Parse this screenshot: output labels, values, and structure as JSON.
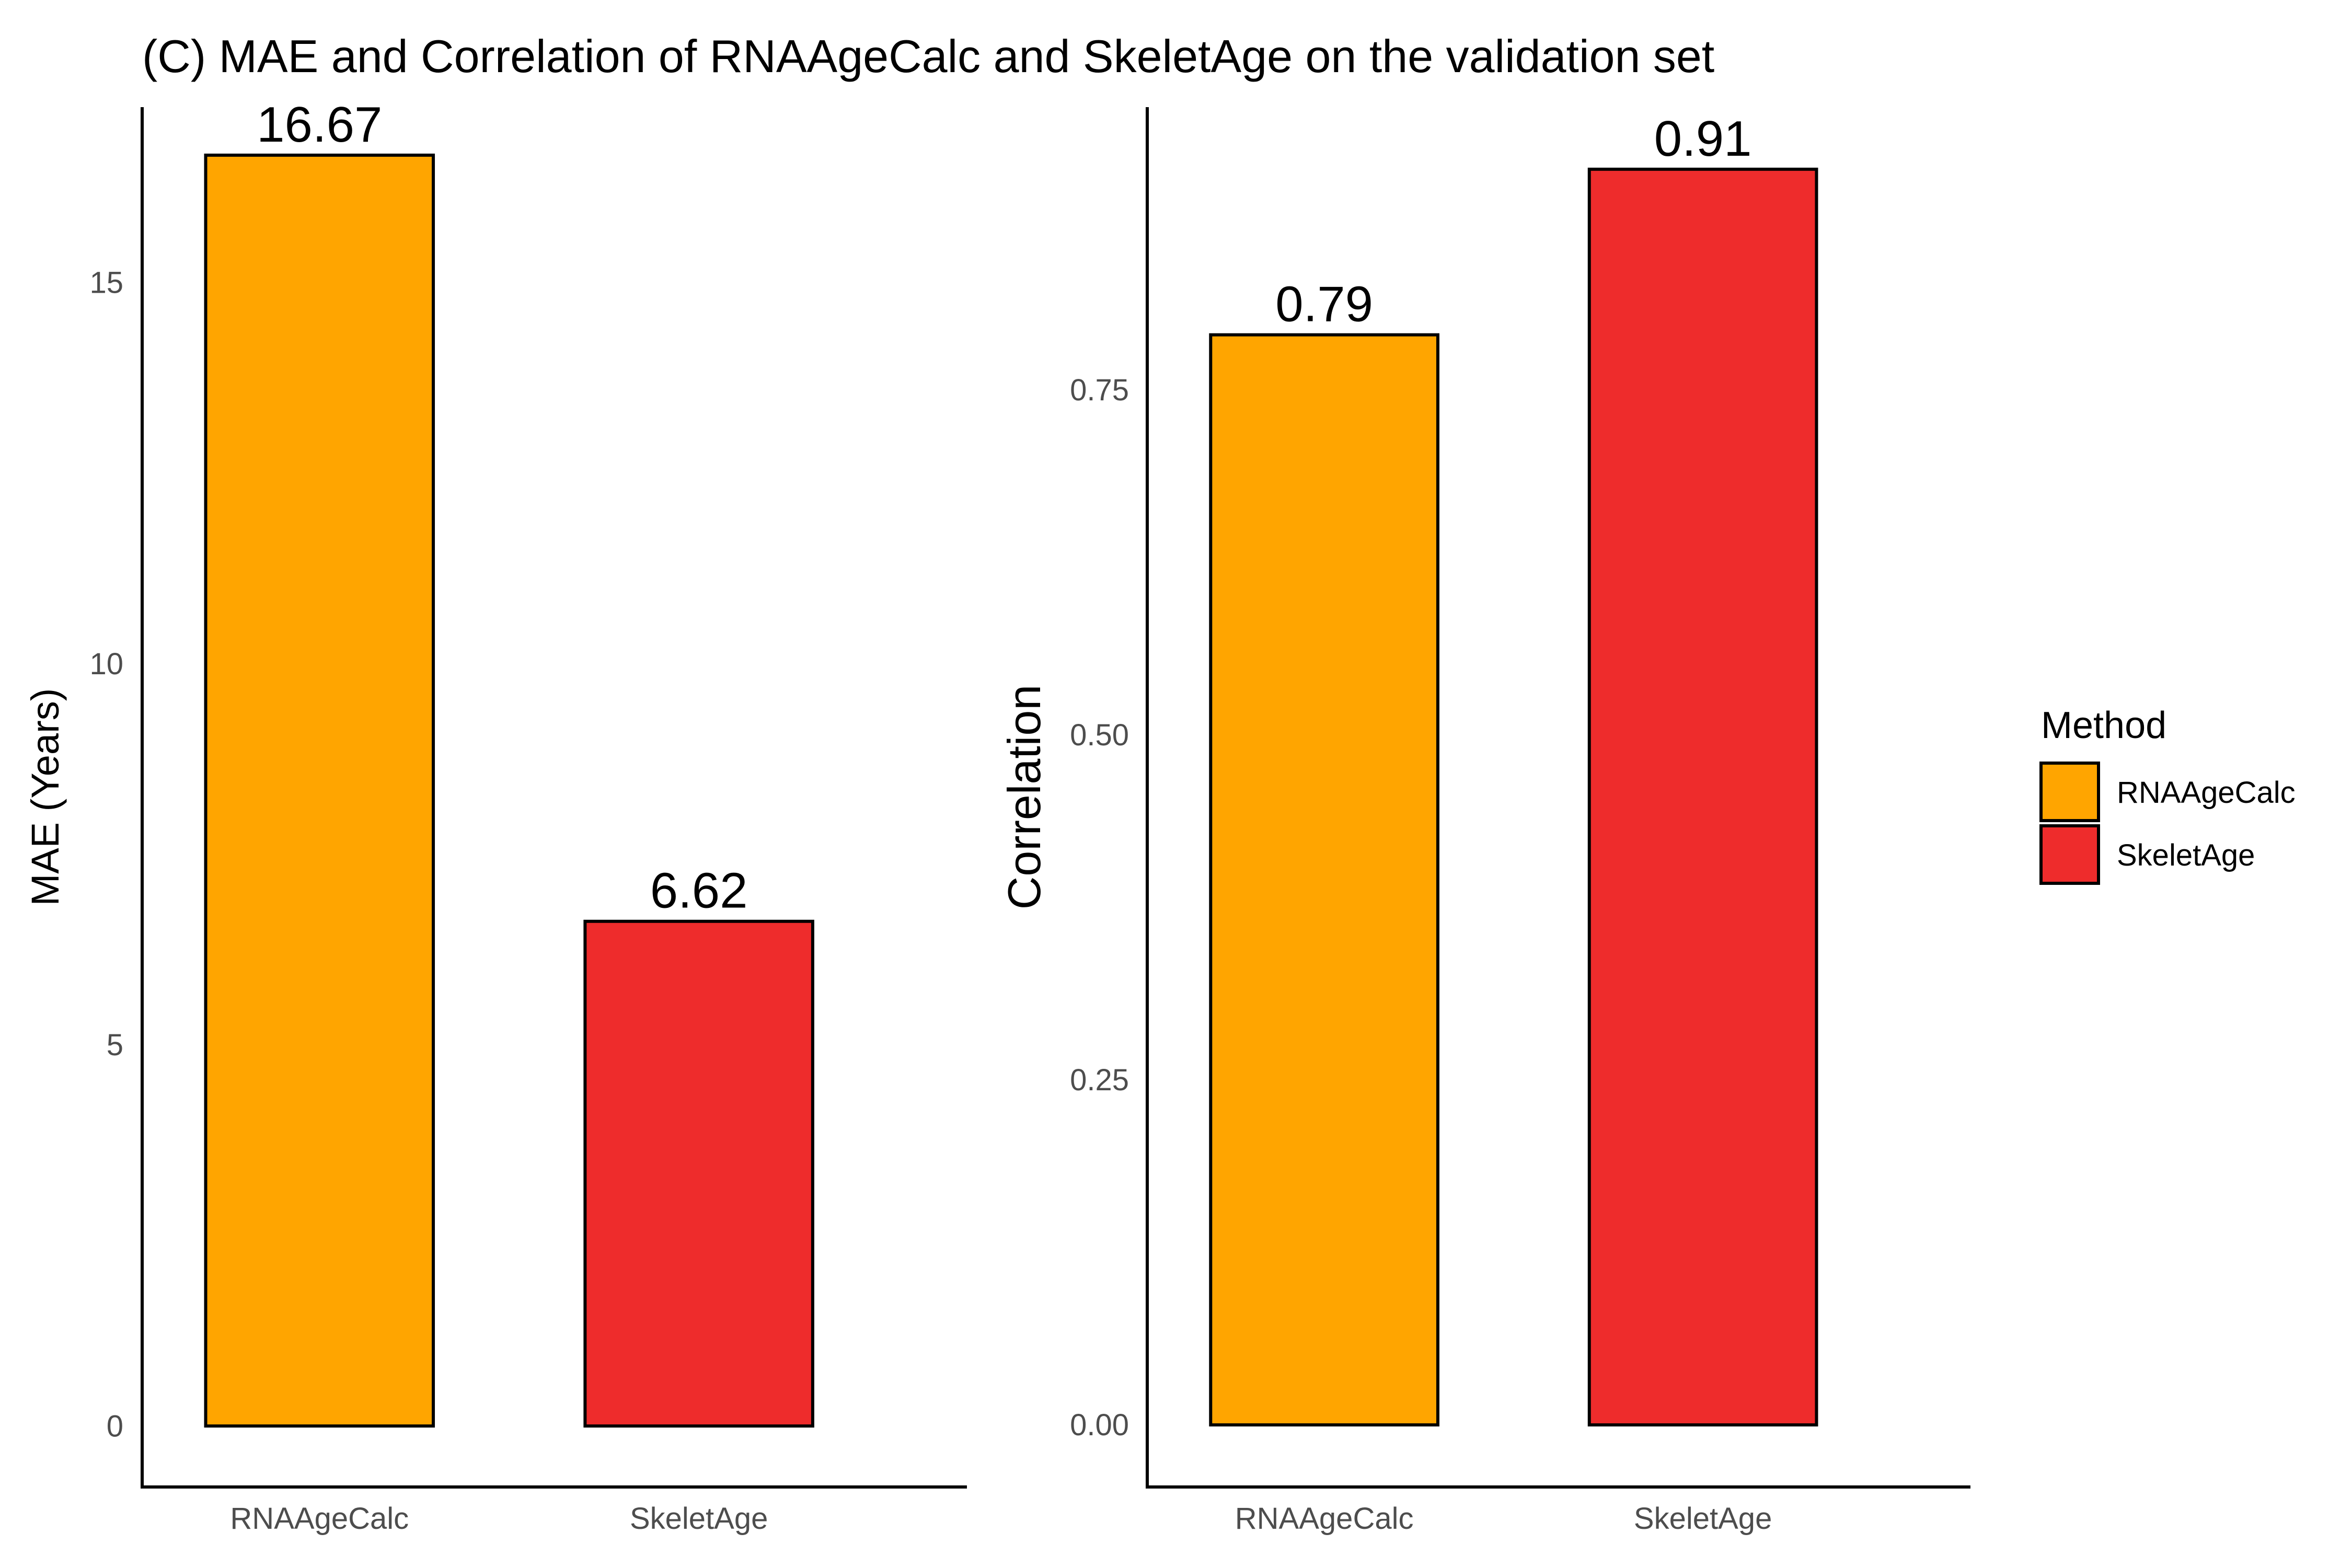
{
  "title": "(C) MAE and Correlation of RNAAgeCalc and SkeletAge on the validation set",
  "colors": {
    "RNAAgeCalc": "#FFA500",
    "SkeletAge": "#EE2C2C",
    "bar_outline": "#000000",
    "axis": "#000000",
    "tick_text": "#4d4d4d"
  },
  "legend": {
    "title": "Method",
    "placement": "right",
    "items": [
      {
        "label": "RNAAgeCalc",
        "color": "#FFA500"
      },
      {
        "label": "SkeletAge",
        "color": "#EE2C2C"
      }
    ]
  },
  "chart_data": [
    {
      "type": "bar",
      "categories": [
        "RNAAgeCalc",
        "SkeletAge"
      ],
      "values": [
        16.67,
        6.62
      ],
      "value_labels": [
        "16.67",
        "6.62"
      ],
      "ylabel": "MAE (Years)",
      "xlabel": "",
      "ylim": [
        -0.8,
        17.3
      ],
      "yticks": [
        0,
        5,
        10,
        15
      ],
      "ytick_labels": [
        "0",
        "5",
        "10",
        "15"
      ],
      "grid": false
    },
    {
      "type": "bar",
      "categories": [
        "RNAAgeCalc",
        "SkeletAge"
      ],
      "values": [
        0.79,
        0.91
      ],
      "value_labels": [
        "0.79",
        "0.91"
      ],
      "ylabel": "Correlation",
      "xlabel": "",
      "ylim": [
        -0.045,
        0.955
      ],
      "yticks": [
        0.0,
        0.25,
        0.5,
        0.75
      ],
      "ytick_labels": [
        "0.00",
        "0.25",
        "0.50",
        "0.75"
      ],
      "grid": false
    }
  ]
}
